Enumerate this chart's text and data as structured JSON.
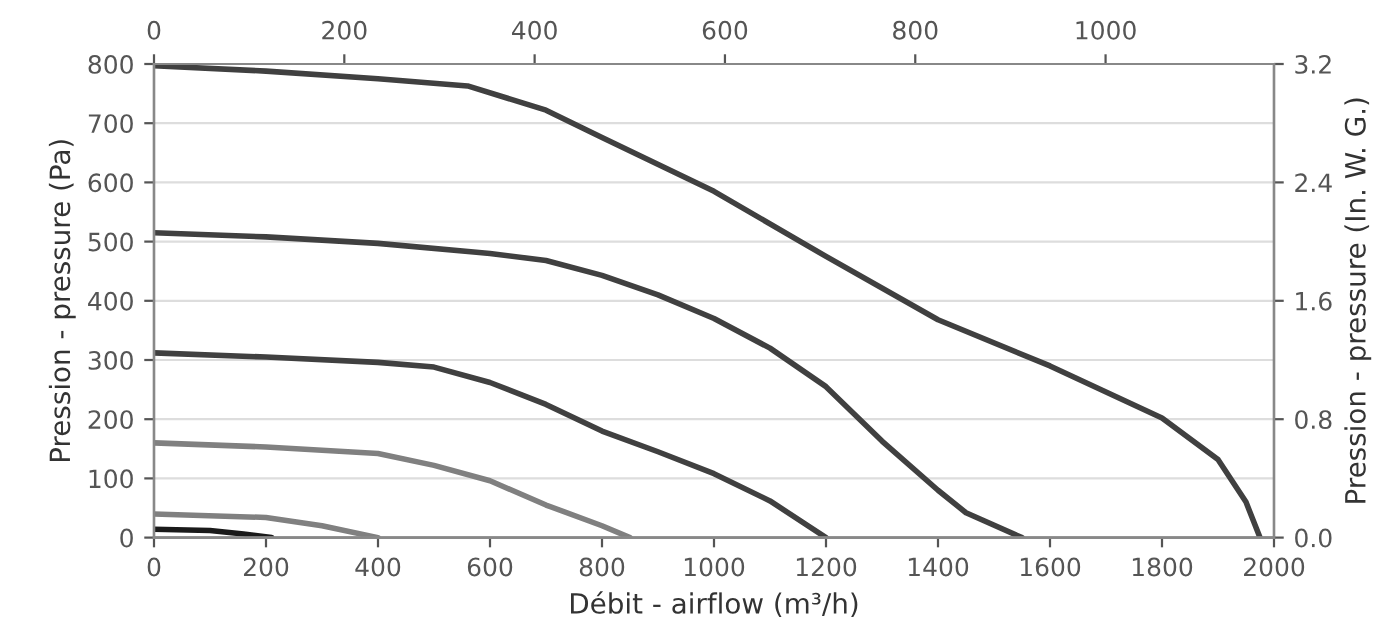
{
  "chart_data": {
    "type": "line",
    "xlabel": "Débit - airflow (m³/h)",
    "ylabel": "Pression - pressure (Pa)",
    "y2label": "Pression - pressure (In. W. G.)",
    "xlim": [
      0,
      2000
    ],
    "xticks": [
      0,
      200,
      400,
      600,
      800,
      1000,
      1200,
      1400,
      1600,
      1800,
      2000
    ],
    "ylim": [
      0,
      800
    ],
    "yticks": [
      0,
      100,
      200,
      300,
      400,
      500,
      600,
      700,
      800
    ],
    "y2lim": [
      0,
      3.2
    ],
    "y2ticks": [
      {
        "value": 0,
        "label": "0.0"
      },
      {
        "value": 0.8,
        "label": "0.8"
      },
      {
        "value": 1.6,
        "label": "1.6"
      },
      {
        "value": 2.4,
        "label": "2.4"
      },
      {
        "value": 3.2,
        "label": "3.2"
      }
    ],
    "x2lim": [
      0,
      1177
    ],
    "x2ticks": [
      0,
      200,
      400,
      600,
      800,
      1000
    ],
    "grid": "y",
    "marker": "none",
    "line_style": "solid",
    "legend": false,
    "series": [
      {
        "color": "#404040",
        "x": [
          0,
          200,
          400,
          560,
          700,
          800,
          1000,
          1200,
          1400,
          1600,
          1800,
          1900,
          1950,
          1975
        ],
        "values": [
          797,
          788,
          775,
          763,
          722,
          676,
          585,
          475,
          368,
          290,
          202,
          132,
          60,
          0
        ]
      },
      {
        "color": "#404040",
        "x": [
          0,
          200,
          400,
          600,
          700,
          800,
          900,
          1000,
          1100,
          1200,
          1300,
          1400,
          1450,
          1550
        ],
        "values": [
          515,
          508,
          497,
          480,
          468,
          443,
          410,
          370,
          320,
          255,
          163,
          80,
          42,
          0
        ]
      },
      {
        "color": "#404040",
        "x": [
          0,
          200,
          400,
          500,
          600,
          700,
          800,
          900,
          1000,
          1100,
          1200
        ],
        "values": [
          312,
          305,
          296,
          288,
          262,
          225,
          180,
          145,
          108,
          62,
          0
        ]
      },
      {
        "color": "#808080",
        "x": [
          0,
          200,
          400,
          500,
          600,
          700,
          800,
          850
        ],
        "values": [
          160,
          153,
          142,
          122,
          96,
          55,
          20,
          0
        ]
      },
      {
        "color": "#808080",
        "x": [
          0,
          200,
          300,
          400
        ],
        "values": [
          40,
          34,
          20,
          0
        ]
      },
      {
        "color": "#1a1a1a",
        "x": [
          0,
          100,
          160,
          210
        ],
        "values": [
          14,
          12,
          6,
          0
        ]
      }
    ]
  }
}
